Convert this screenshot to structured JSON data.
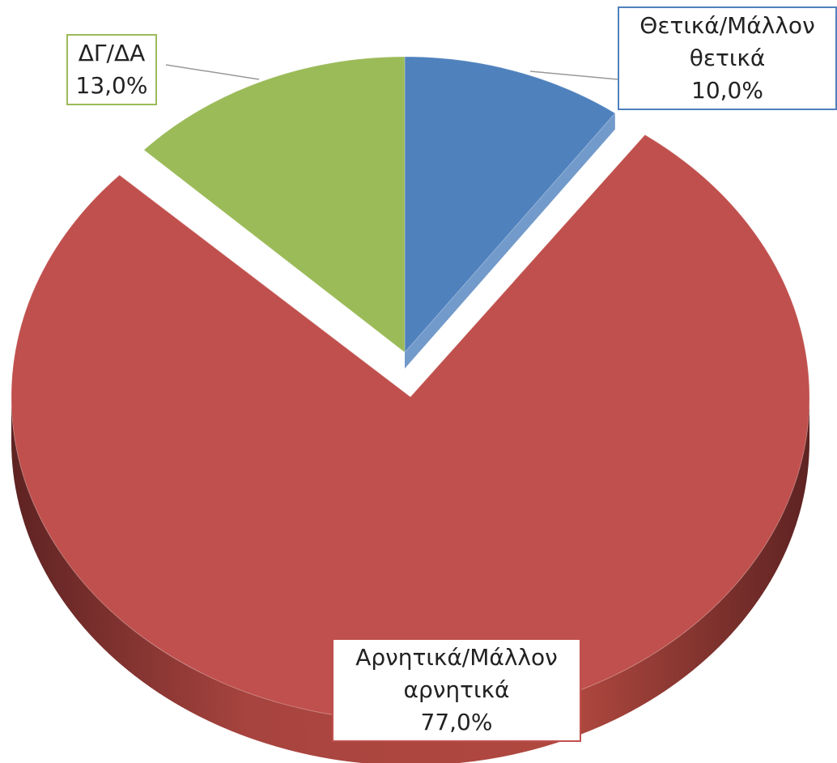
{
  "chart_data": {
    "type": "pie",
    "categories": [
      "Θετικά/Μάλλον θετικά",
      "Αρνητικά/Μάλλον αρνητικά",
      "ΔΓ/ΔΑ"
    ],
    "values": [
      10,
      77,
      13
    ],
    "value_labels": [
      "10,0%",
      "77,0%",
      "13,0%"
    ],
    "colors": [
      "#4f81bd",
      "#c0504d",
      "#9bbb59"
    ]
  }
}
